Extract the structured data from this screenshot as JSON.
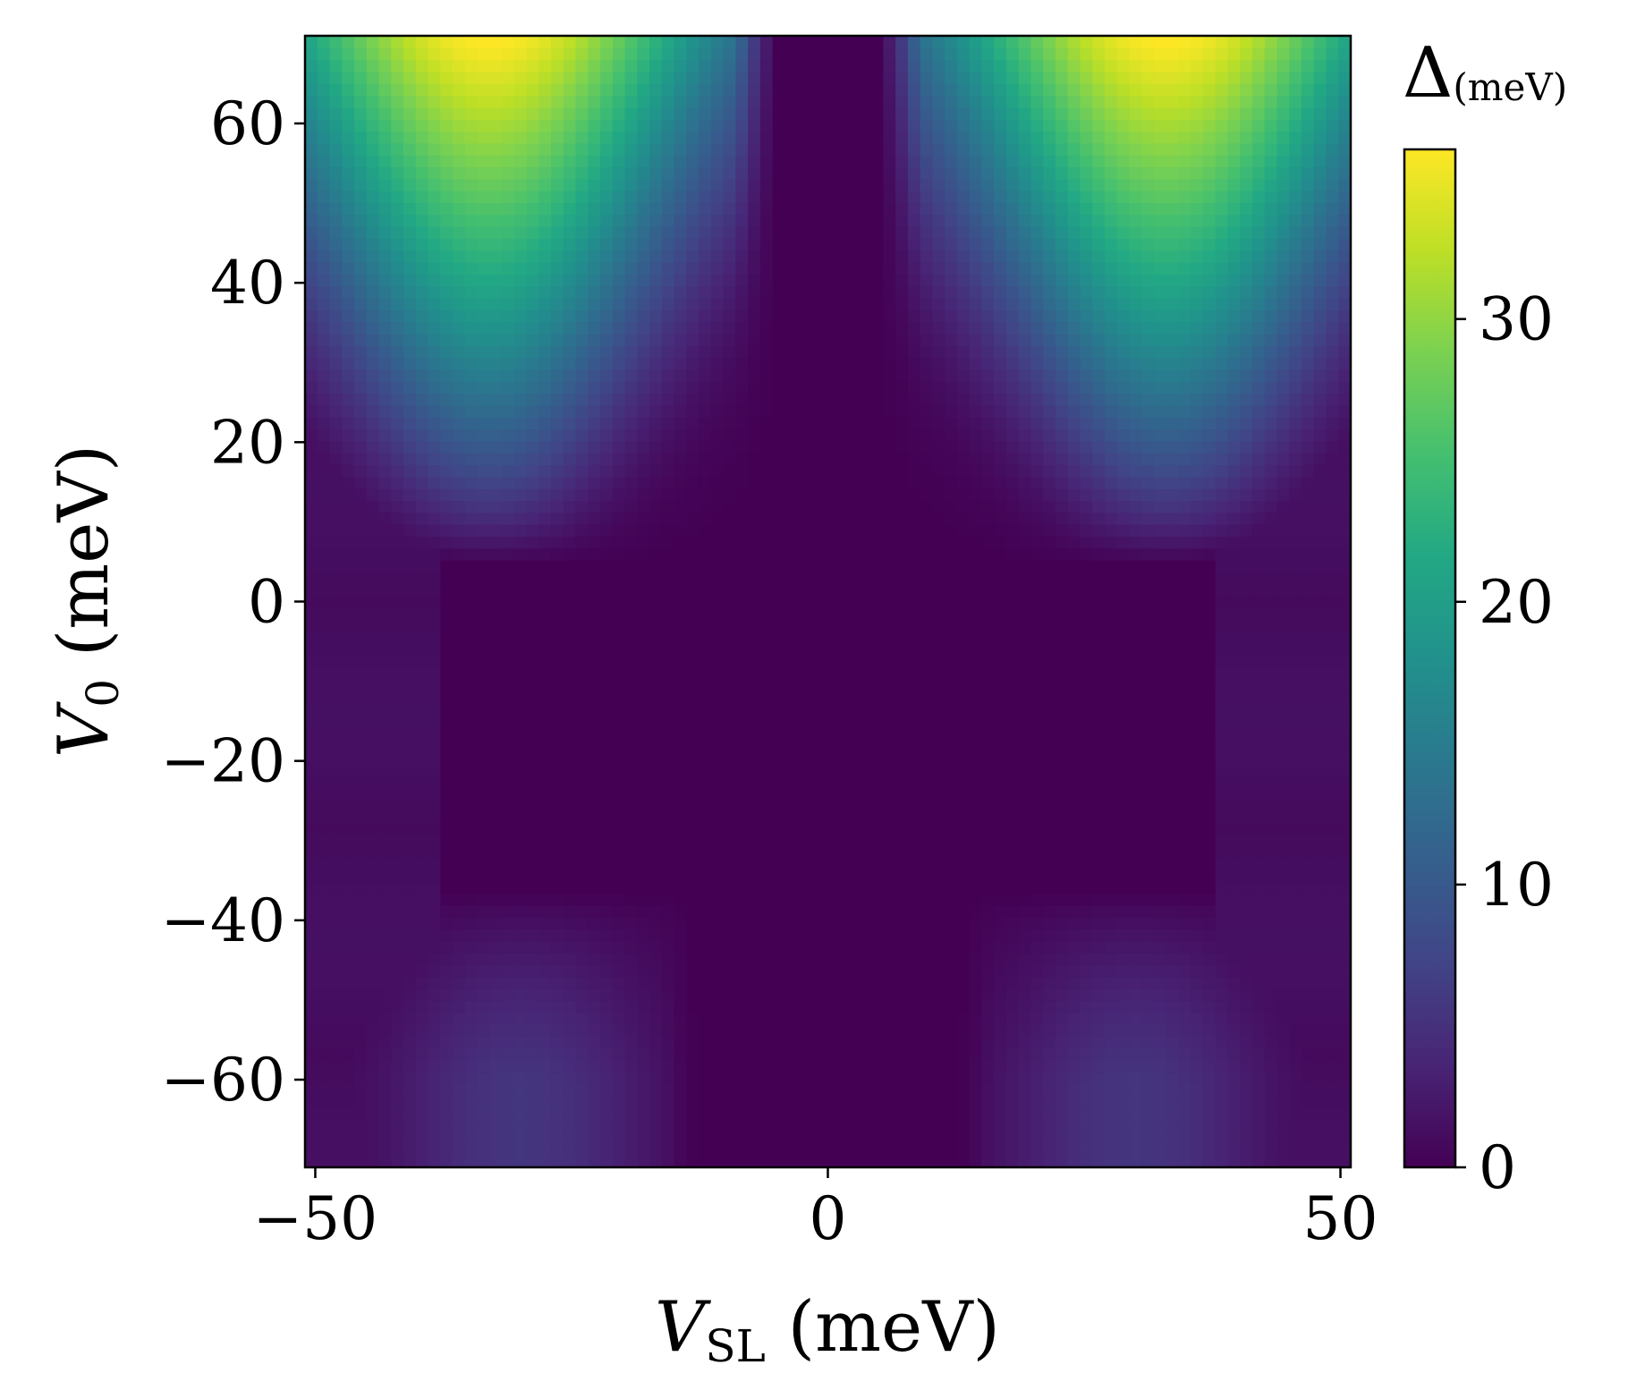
{
  "chart_data": {
    "type": "heatmap",
    "colormap": "viridis",
    "x_axis": {
      "label": "V_SL (meV)",
      "label_main": "V",
      "label_sub": "SL",
      "label_rest": " (meV)",
      "lim": [
        -51,
        51
      ],
      "ticks": [
        -50,
        0,
        50
      ],
      "tick_labels": [
        "−50",
        "0",
        "50"
      ]
    },
    "y_axis": {
      "label": "V_0 (meV)",
      "label_main": "V",
      "label_sub": "0",
      "label_rest": " (meV)",
      "lim": [
        -71,
        71
      ],
      "ticks": [
        -60,
        -40,
        -20,
        0,
        20,
        40,
        60
      ],
      "tick_labels": [
        "−60",
        "−40",
        "−20",
        "0",
        "20",
        "40",
        "60"
      ]
    },
    "colorbar": {
      "title_symbol": "Δ",
      "title_unit": "(meV)",
      "range": [
        0,
        36
      ],
      "ticks": [
        0,
        10,
        20,
        30
      ],
      "tick_labels": [
        "0",
        "10",
        "20",
        "30"
      ]
    },
    "grid": false,
    "value_field": {
      "description_units": "Δ in meV over V_SL (x) and V_0 (y), symmetric about V_SL = 0",
      "upper_lobes": {
        "v0_min": 5,
        "peak_value": 36,
        "peak_at_v_sl_abs": 33,
        "peak_at_v0": 70,
        "zero_band_v_sl_abs_max": 5
      },
      "lower_lobes": {
        "v0_max": -37,
        "peak_value": 5.5,
        "peak_at_v_sl_abs": 30,
        "peak_at_v0": -60,
        "onset_v_sl_abs": 13
      },
      "central_zero_region": {
        "v0_range": [
          -37,
          5
        ]
      },
      "edge_band": {
        "v_sl_abs_range": [
          38,
          51
        ],
        "value": 1.5
      }
    }
  }
}
